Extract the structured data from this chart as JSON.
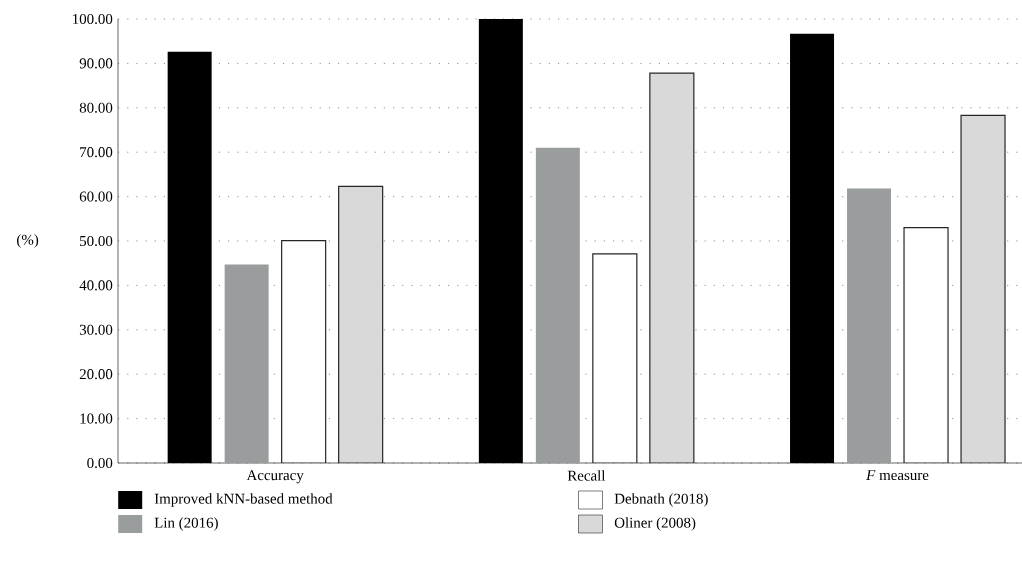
{
  "chart_data": {
    "type": "bar",
    "ylabel": "(%)",
    "categories": [
      "Accuracy",
      "Recall",
      "*F* measure"
    ],
    "series": [
      {
        "name": "Improved kNN-based method",
        "color": "#000000",
        "values": [
          92.6,
          100.0,
          96.7
        ]
      },
      {
        "name": "Lin (2016)",
        "color": "#9a9d9d",
        "values": [
          44.7,
          71.0,
          61.8
        ]
      },
      {
        "name": "Debnath (2018)",
        "color": "#ffffff",
        "values": [
          50.1,
          47.1,
          53.0
        ]
      },
      {
        "name": "Oliner (2008)",
        "color": "#d9d9d9",
        "values": [
          62.3,
          87.8,
          78.3
        ]
      }
    ],
    "ylim": [
      0,
      100
    ],
    "yticks": [
      {
        "value": 0,
        "label": "0.00"
      },
      {
        "value": 10,
        "label": "10.00"
      },
      {
        "value": 20,
        "label": "20.00"
      },
      {
        "value": 30,
        "label": "30.00"
      },
      {
        "value": 40,
        "label": "40.00"
      },
      {
        "value": 50,
        "label": "50.00"
      },
      {
        "value": 60,
        "label": "60.00"
      },
      {
        "value": 70,
        "label": "70.00"
      },
      {
        "value": 80,
        "label": "80.00"
      },
      {
        "value": 90,
        "label": "90.00"
      },
      {
        "value": 100,
        "label": "100.00"
      }
    ],
    "grid": "y",
    "legend": "bottom"
  }
}
